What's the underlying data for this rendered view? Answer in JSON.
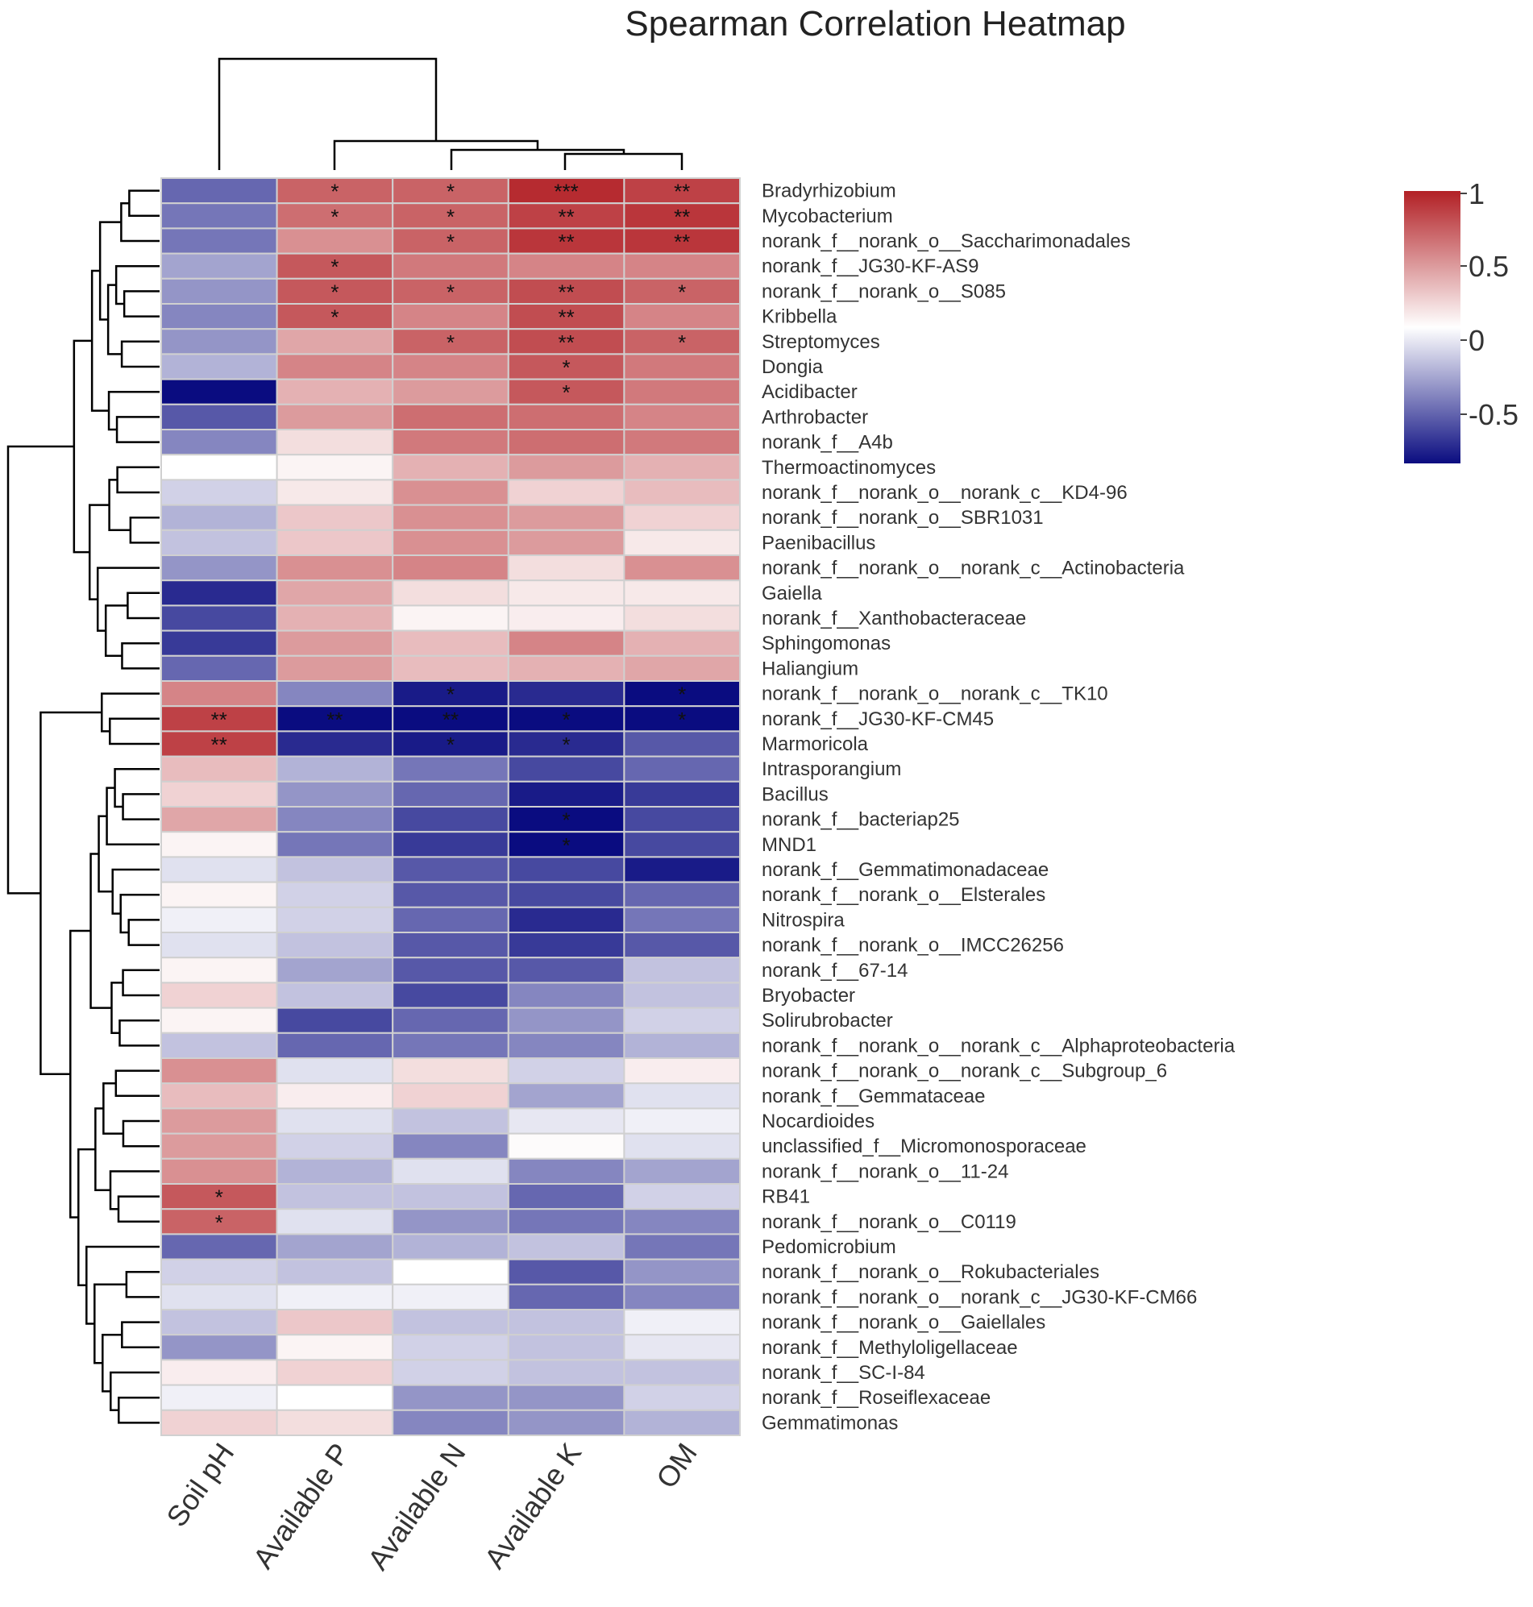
{
  "chart_data": {
    "type": "heatmap",
    "title": "Spearman Correlation Heatmap",
    "columns": [
      "Soil pH",
      "Available P",
      "Available N",
      "Available K",
      "OM"
    ],
    "rows": [
      "Bradyrhizobium",
      "Mycobacterium",
      "norank_f__norank_o__Saccharimonadales",
      "norank_f__JG30-KF-AS9",
      "norank_f__norank_o__S085",
      "Kribbella",
      "Streptomyces",
      "Dongia",
      "Acidibacter",
      "Arthrobacter",
      "norank_f__A4b",
      "Thermoactinomyces",
      "norank_f__norank_o__norank_c__KD4-96",
      "norank_f__norank_o__SBR1031",
      "Paenibacillus",
      "norank_f__norank_o__norank_c__Actinobacteria",
      "Gaiella",
      "norank_f__Xanthobacteraceae",
      "Sphingomonas",
      "Haliangium",
      "norank_f__norank_o__norank_c__TK10",
      "norank_f__JG30-KF-CM45",
      "Marmoricola",
      "Intrasporangium",
      "Bacillus",
      "norank_f__bacteriap25",
      "MND1",
      "norank_f__Gemmatimonadaceae",
      "norank_f__norank_o__Elsterales",
      "Nitrospira",
      "norank_f__norank_o__IMCC26256",
      "norank_f__67-14",
      "Bryobacter",
      "Solirubrobacter",
      "norank_f__norank_o__norank_c__Alphaproteobacteria",
      "norank_f__norank_o__norank_c__Subgroup_6",
      "norank_f__Gemmataceae",
      "Nocardioides",
      "unclassified_f__Micromonosporaceae",
      "norank_f__norank_o__11-24",
      "RB41",
      "norank_f__norank_o__C0119",
      "Pedomicrobium",
      "norank_f__norank_o__Rokubacteriales",
      "norank_f__norank_o__norank_c__JG30-KF-CM66",
      "norank_f__norank_o__Gaiellales",
      "norank_f__Methyloligellaceae",
      "norank_f__SC-I-84",
      "norank_f__Roseiflexaceae",
      "Gemmatimonas"
    ],
    "values": [
      [
        -0.5,
        0.7,
        0.7,
        0.95,
        0.85
      ],
      [
        -0.45,
        0.65,
        0.7,
        0.85,
        0.9
      ],
      [
        -0.45,
        0.5,
        0.7,
        0.9,
        0.9
      ],
      [
        -0.3,
        0.75,
        0.6,
        0.55,
        0.55
      ],
      [
        -0.35,
        0.75,
        0.7,
        0.8,
        0.7
      ],
      [
        -0.4,
        0.75,
        0.55,
        0.8,
        0.55
      ],
      [
        -0.35,
        0.4,
        0.7,
        0.8,
        0.7
      ],
      [
        -0.25,
        0.55,
        0.55,
        0.75,
        0.6
      ],
      [
        -0.8,
        0.35,
        0.45,
        0.75,
        0.6
      ],
      [
        -0.55,
        0.45,
        0.65,
        0.65,
        0.55
      ],
      [
        -0.4,
        0.15,
        0.6,
        0.65,
        0.6
      ],
      [
        0.0,
        0.05,
        0.35,
        0.45,
        0.35
      ],
      [
        -0.15,
        0.1,
        0.5,
        0.2,
        0.3
      ],
      [
        -0.25,
        0.25,
        0.5,
        0.45,
        0.2
      ],
      [
        -0.2,
        0.25,
        0.5,
        0.45,
        0.1
      ],
      [
        -0.35,
        0.5,
        0.55,
        0.15,
        0.5
      ],
      [
        -0.7,
        0.4,
        0.15,
        0.1,
        0.1
      ],
      [
        -0.6,
        0.35,
        0.05,
        0.08,
        0.15
      ],
      [
        -0.65,
        0.45,
        0.3,
        0.55,
        0.35
      ],
      [
        -0.5,
        0.45,
        0.3,
        0.35,
        0.4
      ],
      [
        0.55,
        -0.4,
        -0.75,
        -0.7,
        -0.8
      ],
      [
        0.85,
        -0.95,
        -0.95,
        -0.85,
        -0.85
      ],
      [
        0.85,
        -0.7,
        -0.75,
        -0.7,
        -0.55
      ],
      [
        0.3,
        -0.25,
        -0.45,
        -0.6,
        -0.5
      ],
      [
        0.2,
        -0.35,
        -0.5,
        -0.75,
        -0.65
      ],
      [
        0.4,
        -0.4,
        -0.6,
        -0.8,
        -0.6
      ],
      [
        0.05,
        -0.45,
        -0.65,
        -0.8,
        -0.6
      ],
      [
        -0.1,
        -0.2,
        -0.55,
        -0.6,
        -0.75
      ],
      [
        0.05,
        -0.15,
        -0.55,
        -0.6,
        -0.5
      ],
      [
        -0.05,
        -0.15,
        -0.5,
        -0.7,
        -0.45
      ],
      [
        -0.1,
        -0.2,
        -0.55,
        -0.65,
        -0.55
      ],
      [
        0.05,
        -0.3,
        -0.55,
        -0.55,
        -0.2
      ],
      [
        0.2,
        -0.2,
        -0.6,
        -0.4,
        -0.2
      ],
      [
        0.05,
        -0.6,
        -0.5,
        -0.35,
        -0.15
      ],
      [
        -0.2,
        -0.5,
        -0.45,
        -0.4,
        -0.25
      ],
      [
        0.5,
        -0.1,
        0.15,
        -0.15,
        0.08
      ],
      [
        0.3,
        0.08,
        0.2,
        -0.3,
        -0.1
      ],
      [
        0.45,
        -0.1,
        -0.2,
        -0.08,
        -0.05
      ],
      [
        0.45,
        -0.15,
        -0.4,
        0.02,
        -0.1
      ],
      [
        0.5,
        -0.25,
        -0.1,
        -0.4,
        -0.3
      ],
      [
        0.75,
        -0.2,
        -0.2,
        -0.5,
        -0.15
      ],
      [
        0.7,
        -0.1,
        -0.35,
        -0.45,
        -0.4
      ],
      [
        -0.5,
        -0.3,
        -0.25,
        -0.2,
        -0.45
      ],
      [
        -0.15,
        -0.2,
        0.0,
        -0.55,
        -0.35
      ],
      [
        -0.1,
        -0.05,
        -0.05,
        -0.5,
        -0.4
      ],
      [
        -0.2,
        0.25,
        -0.2,
        -0.2,
        -0.05
      ],
      [
        -0.35,
        0.05,
        -0.15,
        -0.2,
        -0.08
      ],
      [
        0.08,
        0.2,
        -0.15,
        -0.2,
        -0.2
      ],
      [
        -0.05,
        0.0,
        -0.35,
        -0.35,
        -0.15
      ],
      [
        0.2,
        0.15,
        -0.4,
        -0.35,
        -0.25
      ]
    ],
    "significance": [
      [
        "",
        "*",
        "*",
        "***",
        "**"
      ],
      [
        "",
        "*",
        "*",
        "**",
        "**"
      ],
      [
        "",
        "",
        "*",
        "**",
        "**"
      ],
      [
        "",
        "*",
        "",
        "",
        ""
      ],
      [
        "",
        "*",
        "*",
        "**",
        "*"
      ],
      [
        "",
        "*",
        "",
        "**",
        ""
      ],
      [
        "",
        "",
        "*",
        "**",
        "*"
      ],
      [
        "",
        "",
        "",
        "*",
        ""
      ],
      [
        "",
        "",
        "",
        "*",
        ""
      ],
      [
        "",
        "",
        "",
        "",
        ""
      ],
      [
        "",
        "",
        "",
        "",
        ""
      ],
      [
        "",
        "",
        "",
        "",
        ""
      ],
      [
        "",
        "",
        "",
        "",
        ""
      ],
      [
        "",
        "",
        "",
        "",
        ""
      ],
      [
        "",
        "",
        "",
        "",
        ""
      ],
      [
        "",
        "",
        "",
        "",
        ""
      ],
      [
        "",
        "",
        "",
        "",
        ""
      ],
      [
        "",
        "",
        "",
        "",
        ""
      ],
      [
        "",
        "",
        "",
        "",
        ""
      ],
      [
        "",
        "",
        "",
        "",
        ""
      ],
      [
        "",
        "",
        "*",
        "",
        "*"
      ],
      [
        "**",
        "**",
        "**",
        "*",
        "*"
      ],
      [
        "**",
        "",
        "*",
        "*",
        ""
      ],
      [
        "",
        "",
        "",
        "",
        ""
      ],
      [
        "",
        "",
        "",
        "",
        ""
      ],
      [
        "",
        "",
        "",
        "*",
        ""
      ],
      [
        "",
        "",
        "",
        "*",
        ""
      ],
      [
        "",
        "",
        "",
        "",
        ""
      ],
      [
        "",
        "",
        "",
        "",
        ""
      ],
      [
        "",
        "",
        "",
        "",
        ""
      ],
      [
        "",
        "",
        "",
        "",
        ""
      ],
      [
        "",
        "",
        "",
        "",
        ""
      ],
      [
        "",
        "",
        "",
        "",
        ""
      ],
      [
        "",
        "",
        "",
        "",
        ""
      ],
      [
        "",
        "",
        "",
        "",
        ""
      ],
      [
        "",
        "",
        "",
        "",
        ""
      ],
      [
        "",
        "",
        "",
        "",
        ""
      ],
      [
        "",
        "",
        "",
        "",
        ""
      ],
      [
        "",
        "",
        "",
        "",
        ""
      ],
      [
        "",
        "",
        "",
        "",
        ""
      ],
      [
        "*",
        "",
        "",
        "",
        ""
      ],
      [
        "*",
        "",
        "",
        "",
        ""
      ],
      [
        "",
        "",
        "",
        "",
        ""
      ],
      [
        "",
        "",
        "",
        "",
        ""
      ],
      [
        "",
        "",
        "",
        "",
        ""
      ],
      [
        "",
        "",
        "",
        "",
        ""
      ],
      [
        "",
        "",
        "",
        "",
        ""
      ],
      [
        "",
        "",
        "",
        "",
        ""
      ],
      [
        "",
        "",
        "",
        "",
        ""
      ],
      [
        "",
        "",
        "",
        "",
        ""
      ]
    ],
    "color_scale": {
      "range": [
        -0.8,
        1
      ],
      "ticks": [
        1,
        0.5,
        0,
        -0.5
      ],
      "tick_labels": [
        "1",
        "0.5",
        "0",
        "-0.5"
      ],
      "low_color": "#0a0c80",
      "mid_color": "#ffffff",
      "high_color": "#b22025"
    },
    "legend_position": "right",
    "column_dendrogram": "top",
    "row_dendrogram": "left"
  }
}
